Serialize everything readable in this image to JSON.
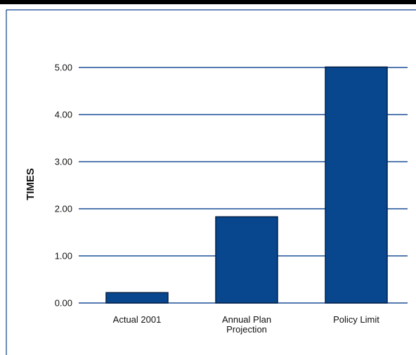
{
  "chart_data": {
    "type": "bar",
    "title": "",
    "xlabel": "",
    "ylabel": "TIMES",
    "categories": [
      [
        "Actual 2001"
      ],
      [
        "Annual Plan",
        "Projection"
      ],
      [
        "Policy Limit"
      ]
    ],
    "values": [
      0.22,
      1.83,
      5.01
    ],
    "ylim": [
      0,
      5
    ],
    "yticks": [
      "0.00",
      "1.00",
      "2.00",
      "3.00",
      "4.00",
      "5.00"
    ],
    "grid": true,
    "legend": "none",
    "colors": {
      "bar": "#08478e",
      "bar_edge": "#031f45",
      "grid": "#1a4f96",
      "frame": "#0a3f87",
      "top_strip": "#000000"
    }
  }
}
